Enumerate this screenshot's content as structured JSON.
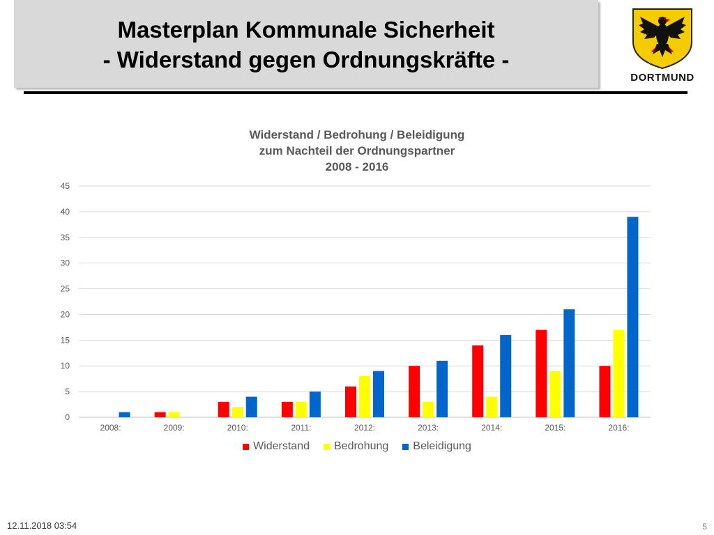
{
  "slide": {
    "title_line1": "Masterplan Kommunale Sicherheit",
    "title_line2": "- Widerstand gegen Ordnungskräfte -",
    "logo_text": "DORTMUND",
    "footer_date": "12.11.2018 03:54",
    "page_number": "5"
  },
  "chart_data": {
    "type": "bar",
    "title_lines": [
      "Widerstand / Bedrohung / Beleidigung",
      "zum Nachteil der Ordnungspartner",
      "2008 - 2016"
    ],
    "categories": [
      "2008:",
      "2009:",
      "2010:",
      "2011:",
      "2012:",
      "2013:",
      "2014:",
      "2015:",
      "2016:"
    ],
    "series": [
      {
        "name": "Widerstand",
        "color": "#ff0000",
        "values": [
          0,
          1,
          3,
          3,
          6,
          10,
          14,
          17,
          10
        ]
      },
      {
        "name": "Bedrohung",
        "color": "#ffff00",
        "values": [
          0,
          1,
          2,
          3,
          8,
          3,
          4,
          9,
          17
        ]
      },
      {
        "name": "Beleidigung",
        "color": "#0066cc",
        "values": [
          1,
          0,
          4,
          5,
          9,
          11,
          16,
          21,
          39
        ]
      }
    ],
    "ylim": [
      0,
      45
    ],
    "yticks": [
      0,
      5,
      10,
      15,
      20,
      25,
      30,
      35,
      40,
      45
    ],
    "grid": true,
    "legend_position": "bottom"
  }
}
